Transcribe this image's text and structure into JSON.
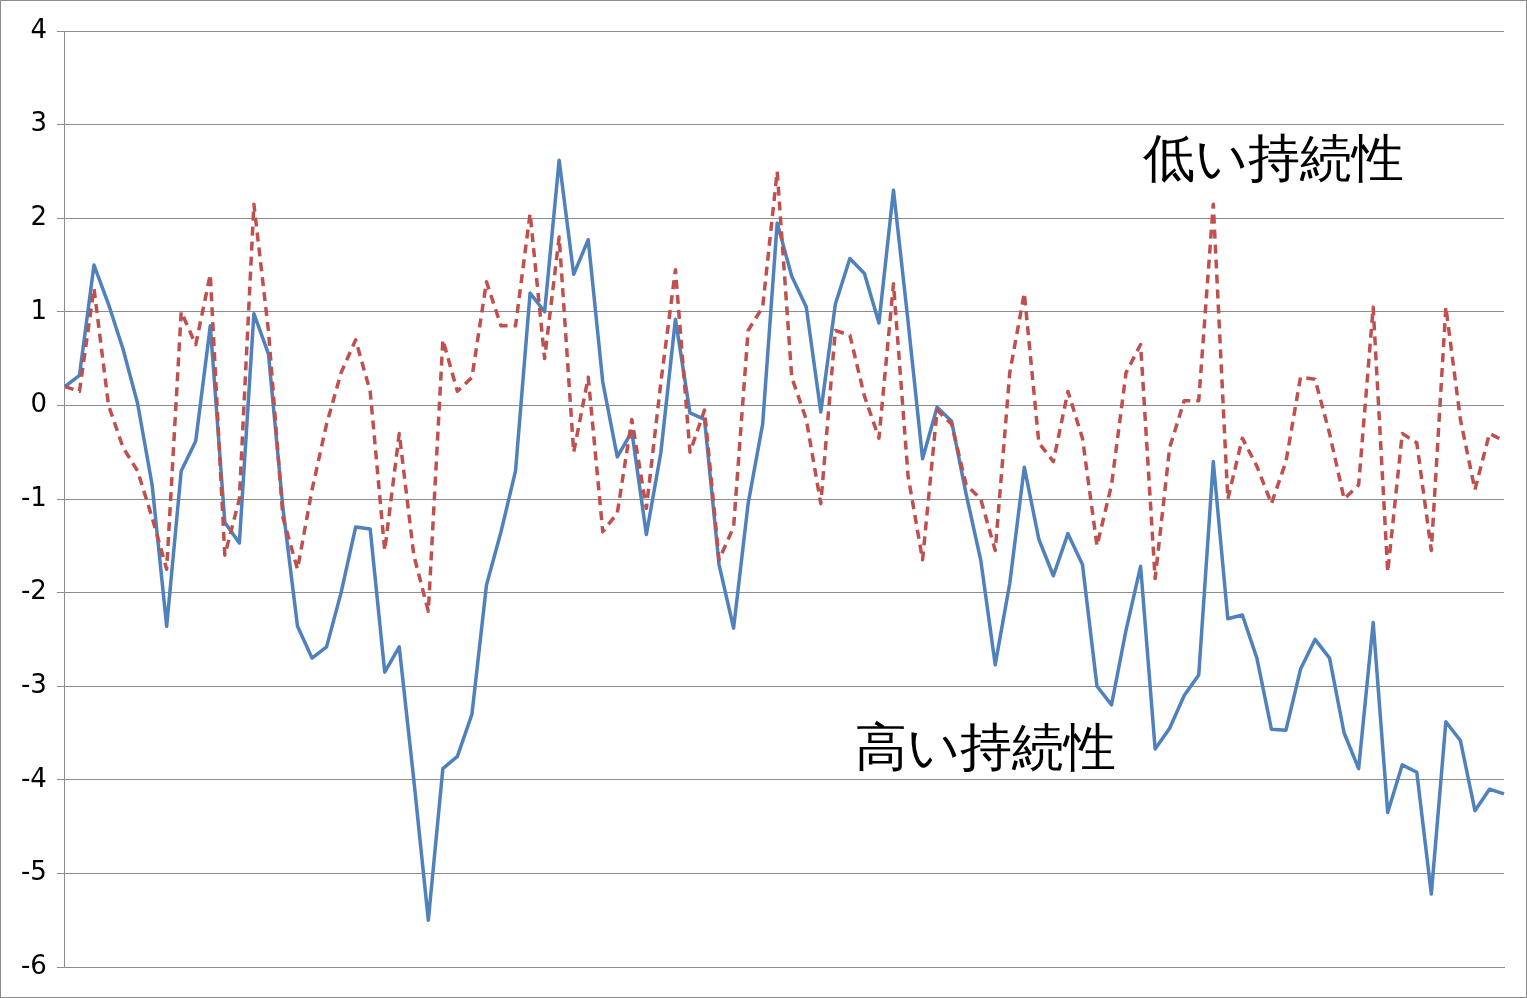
{
  "chart_data": {
    "type": "line",
    "categories": [
      null,
      null,
      null,
      null,
      null,
      null,
      null,
      null,
      null,
      null,
      null,
      null,
      null,
      null,
      null,
      null,
      null,
      null,
      null,
      null,
      null,
      null,
      null,
      null,
      null,
      null,
      null,
      null,
      null,
      null,
      null,
      null,
      null,
      null,
      null,
      null,
      null,
      null,
      null,
      null,
      null,
      null,
      null,
      null,
      null,
      null,
      null,
      null,
      null,
      null,
      null,
      null,
      null,
      null,
      null,
      null,
      null,
      null,
      null,
      null,
      null,
      null,
      null,
      null,
      null,
      null,
      null,
      null,
      null,
      null,
      null,
      null,
      null,
      null,
      null,
      null,
      null,
      null,
      null,
      null,
      null,
      null,
      null,
      null,
      null,
      null,
      null,
      null,
      null,
      null,
      null,
      null,
      null,
      null,
      null,
      null,
      null,
      null,
      null,
      null
    ],
    "series": [
      {
        "name": "低い持続性",
        "color": "#c0504d",
        "line_style": "dashed",
        "values": [
          0.2,
          0.15,
          1.25,
          0.0,
          -0.45,
          -0.7,
          -1.2,
          -1.75,
          1.0,
          0.65,
          1.4,
          -1.6,
          -1.0,
          2.15,
          0.8,
          -1.2,
          -1.75,
          -0.9,
          -0.2,
          0.35,
          0.7,
          0.15,
          -1.55,
          -0.3,
          -1.6,
          -2.2,
          0.7,
          0.15,
          0.3,
          1.32,
          0.85,
          0.85,
          2.05,
          0.5,
          1.8,
          -0.5,
          0.3,
          -1.35,
          -1.15,
          -0.15,
          -1.1,
          0.25,
          1.45,
          -0.5,
          -0.05,
          -1.65,
          -1.3,
          0.8,
          1.05,
          2.5,
          0.3,
          -0.15,
          -1.05,
          0.8,
          0.75,
          0.1,
          -0.35,
          1.3,
          -0.75,
          -1.65,
          -0.05,
          -0.2,
          -0.85,
          -1.0,
          -1.55,
          0.35,
          1.2,
          -0.4,
          -0.6,
          0.15,
          -0.35,
          -1.5,
          -0.85,
          0.35,
          0.65,
          -1.85,
          -0.45,
          0.05,
          0.05,
          2.15,
          -1.0,
          -0.35,
          -0.65,
          -1.05,
          -0.6,
          0.3,
          0.28,
          -0.3,
          -1.0,
          -0.85,
          1.05,
          -1.78,
          -0.3,
          -0.4,
          -1.55,
          1.05,
          -0.15,
          -0.9,
          -0.3,
          -0.38
        ]
      },
      {
        "name": "高い持続性",
        "color": "#4f81bd",
        "line_style": "solid",
        "values": [
          0.2,
          0.32,
          1.5,
          1.08,
          0.6,
          0.02,
          -0.85,
          -2.36,
          -0.7,
          -0.38,
          0.85,
          -1.25,
          -1.47,
          0.98,
          0.55,
          -1.1,
          -2.36,
          -2.7,
          -2.58,
          -2.0,
          -1.3,
          -1.32,
          -2.85,
          -2.58,
          -4.0,
          -5.5,
          -3.88,
          -3.75,
          -3.3,
          -1.92,
          -1.35,
          -0.7,
          1.2,
          1.0,
          2.62,
          1.4,
          1.77,
          0.25,
          -0.55,
          -0.28,
          -1.38,
          -0.5,
          0.92,
          -0.08,
          -0.15,
          -1.7,
          -2.38,
          -1.05,
          -0.2,
          1.95,
          1.38,
          1.05,
          -0.07,
          1.08,
          1.57,
          1.41,
          0.88,
          2.3,
          0.9,
          -0.57,
          -0.02,
          -0.17,
          -0.95,
          -1.65,
          -2.77,
          -1.9,
          -0.66,
          -1.43,
          -1.82,
          -1.37,
          -1.7,
          -3.0,
          -3.2,
          -2.4,
          -1.72,
          -3.67,
          -3.45,
          -3.1,
          -2.88,
          -0.6,
          -2.28,
          -2.24,
          -2.7,
          -3.46,
          -3.47,
          -2.82,
          -2.5,
          -2.7,
          -3.5,
          -3.88,
          -2.32,
          -4.35,
          -3.84,
          -3.92,
          -5.22,
          -3.38,
          -3.58,
          -4.33,
          -4.1,
          -4.15
        ]
      }
    ],
    "ylim": [
      -6,
      4
    ],
    "yticks": [
      -6,
      -5,
      -4,
      -3,
      -2,
      -1,
      0,
      1,
      2,
      3,
      4
    ],
    "grid": "y",
    "legend": false,
    "tick_labels": "y",
    "marker": "none"
  }
}
